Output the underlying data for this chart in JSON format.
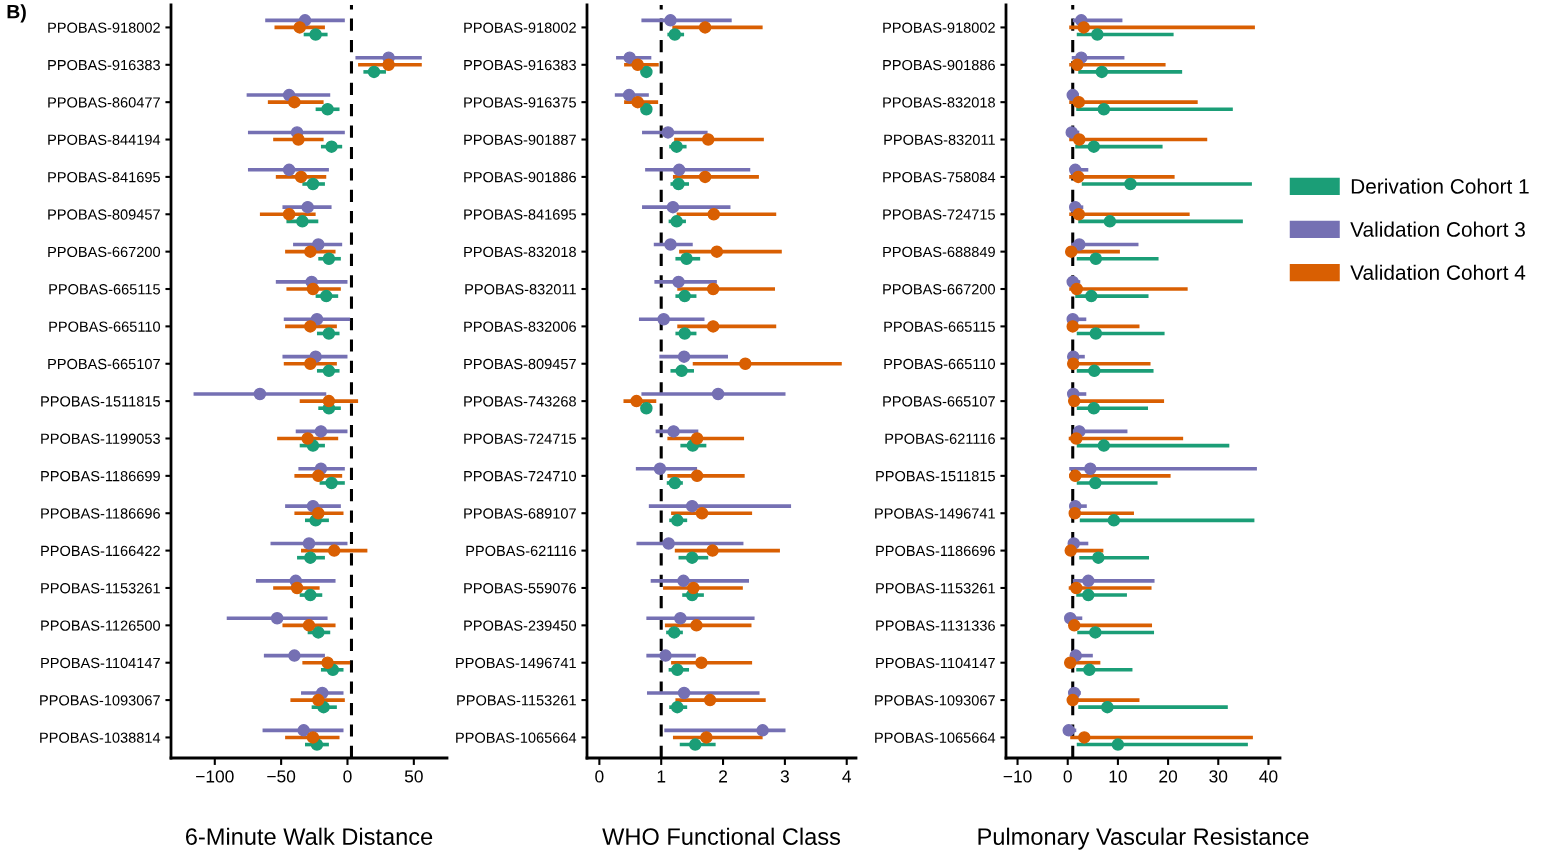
{
  "chart_data": [
    {
      "type": "scatter",
      "orientation": "horizontal",
      "marker": "circle",
      "xlabel": "6-Minute Walk Distance",
      "annotations": [
        "B)"
      ],
      "categories": [
        "PPOBAS-918002",
        "PPOBAS-916383",
        "PPOBAS-860477",
        "PPOBAS-844194",
        "PPOBAS-841695",
        "PPOBAS-809457",
        "PPOBAS-667200",
        "PPOBAS-665115",
        "PPOBAS-665110",
        "PPOBAS-665107",
        "PPOBAS-1511815",
        "PPOBAS-1199053",
        "PPOBAS-1186699",
        "PPOBAS-1186696",
        "PPOBAS-1166422",
        "PPOBAS-1153261",
        "PPOBAS-1126500",
        "PPOBAS-1104147",
        "PPOBAS-1093067",
        "PPOBAS-1038814"
      ],
      "xlim": [
        -133,
        75
      ],
      "xticks": [
        {
          "value": -100,
          "label": "−100"
        },
        {
          "value": -50,
          "label": "−50"
        },
        0,
        50
      ],
      "ref_lines": [
        {
          "axis": "x",
          "value": 3,
          "color": "#000000",
          "line_style": "dashed"
        }
      ],
      "series": [
        {
          "color": "#1b9e77",
          "values": [
            -24,
            20,
            -15,
            -12,
            -26,
            -34,
            -14,
            -16,
            -14,
            -14,
            -14,
            -26,
            -12,
            -24,
            -28,
            -28,
            -22,
            -11,
            -18,
            -23
          ],
          "errors": [
            [
              -33,
              -15
            ],
            [
              12,
              29
            ],
            [
              -24,
              -6
            ],
            [
              -20,
              -4
            ],
            [
              -34,
              -17
            ],
            [
              -46,
              -22
            ],
            [
              -22,
              -5
            ],
            [
              -24,
              -7
            ],
            [
              -23,
              -6
            ],
            [
              -23,
              -6
            ],
            [
              -22,
              -5
            ],
            [
              -36,
              -17
            ],
            [
              -21,
              -2
            ],
            [
              -32,
              -14
            ],
            [
              -38,
              -17
            ],
            [
              -36,
              -19
            ],
            [
              -30,
              -13
            ],
            [
              -20,
              -3
            ],
            [
              -27,
              -8
            ],
            [
              -32,
              -14
            ]
          ]
        },
        {
          "color": "#7570b3",
          "values": [
            -32,
            31,
            -44,
            -38,
            -44,
            -30,
            -22,
            -27,
            -23,
            -24,
            -66,
            -20,
            -20,
            -26,
            -29,
            -39,
            -53,
            -40,
            -19,
            -33
          ],
          "errors": [
            [
              -62,
              -2
            ],
            [
              6,
              56
            ],
            [
              -76,
              -13
            ],
            [
              -75,
              -2
            ],
            [
              -75,
              -14
            ],
            [
              -49,
              -12
            ],
            [
              -41,
              -4
            ],
            [
              -54,
              0
            ],
            [
              -48,
              2
            ],
            [
              -49,
              0
            ],
            [
              -116,
              -16
            ],
            [
              -39,
              0
            ],
            [
              -37,
              -2
            ],
            [
              -47,
              -5
            ],
            [
              -58,
              0
            ],
            [
              -69,
              -9
            ],
            [
              -91,
              -15
            ],
            [
              -63,
              -17
            ],
            [
              -35,
              -3
            ],
            [
              -64,
              -3
            ]
          ]
        },
        {
          "color": "#d95f02",
          "values": [
            -36,
            31,
            -40,
            -37,
            -35,
            -44,
            -28,
            -26,
            -28,
            -28,
            -14,
            -30,
            -22,
            -22,
            -10,
            -38,
            -29,
            -15,
            -22,
            -26
          ],
          "errors": [
            [
              -55,
              -17
            ],
            [
              8,
              56
            ],
            [
              -60,
              -18
            ],
            [
              -56,
              -18
            ],
            [
              -54,
              -16
            ],
            [
              -66,
              -24
            ],
            [
              -47,
              -9
            ],
            [
              -46,
              -5
            ],
            [
              -47,
              -8
            ],
            [
              -48,
              -8
            ],
            [
              -36,
              8
            ],
            [
              -53,
              -7
            ],
            [
              -40,
              -4
            ],
            [
              -40,
              -3
            ],
            [
              -35,
              15
            ],
            [
              -56,
              -21
            ],
            [
              -49,
              -9
            ],
            [
              -34,
              2
            ],
            [
              -43,
              -2
            ],
            [
              -47,
              -6
            ]
          ]
        }
      ]
    },
    {
      "type": "scatter",
      "orientation": "horizontal",
      "marker": "circle",
      "xlabel": "WHO Functional Class",
      "categories": [
        "PPOBAS-918002",
        "PPOBAS-916383",
        "PPOBAS-916375",
        "PPOBAS-901887",
        "PPOBAS-901886",
        "PPOBAS-841695",
        "PPOBAS-832018",
        "PPOBAS-832011",
        "PPOBAS-832006",
        "PPOBAS-809457",
        "PPOBAS-743268",
        "PPOBAS-724715",
        "PPOBAS-724710",
        "PPOBAS-689107",
        "PPOBAS-621116",
        "PPOBAS-559076",
        "PPOBAS-239450",
        "PPOBAS-1496741",
        "PPOBAS-1153261",
        "PPOBAS-1065664"
      ],
      "xlim": [
        -0.2,
        4.15
      ],
      "xticks": [
        0,
        1,
        2,
        3,
        4
      ],
      "ref_lines": [
        {
          "axis": "x",
          "value": 1,
          "color": "#000000",
          "line_style": "dashed"
        }
      ],
      "series": [
        {
          "color": "#1b9e77",
          "values": [
            1.22,
            0.76,
            0.76,
            1.25,
            1.28,
            1.25,
            1.41,
            1.38,
            1.38,
            1.33,
            0.76,
            1.51,
            1.22,
            1.26,
            1.5,
            1.5,
            1.21,
            1.26,
            1.26,
            1.55
          ],
          "errors": [
            [
              1.1,
              1.37
            ],
            [
              0.68,
              0.83
            ],
            [
              0.69,
              0.84
            ],
            [
              1.13,
              1.41
            ],
            [
              1.15,
              1.45
            ],
            [
              1.12,
              1.4
            ],
            [
              1.23,
              1.63
            ],
            [
              1.23,
              1.57
            ],
            [
              1.23,
              1.57
            ],
            [
              1.15,
              1.53
            ],
            [
              0.69,
              0.84
            ],
            [
              1.31,
              1.73
            ],
            [
              1.09,
              1.35
            ],
            [
              1.13,
              1.42
            ],
            [
              1.28,
              1.76
            ],
            [
              1.34,
              1.69
            ],
            [
              1.08,
              1.35
            ],
            [
              1.12,
              1.45
            ],
            [
              1.13,
              1.42
            ],
            [
              1.3,
              1.88
            ]
          ]
        },
        {
          "color": "#7570b3",
          "values": [
            1.15,
            0.49,
            0.48,
            1.11,
            1.29,
            1.19,
            1.15,
            1.28,
            1.04,
            1.37,
            1.92,
            1.2,
            0.98,
            1.5,
            1.12,
            1.36,
            1.31,
            1.07,
            1.37,
            2.64
          ],
          "errors": [
            [
              0.68,
              2.14
            ],
            [
              0.27,
              0.84
            ],
            [
              0.25,
              0.8
            ],
            [
              0.69,
              1.75
            ],
            [
              0.74,
              2.44
            ],
            [
              0.69,
              2.12
            ],
            [
              0.88,
              1.51
            ],
            [
              0.89,
              1.9
            ],
            [
              0.64,
              1.7
            ],
            [
              0.97,
              2.08
            ],
            [
              0.68,
              3.01
            ],
            [
              0.91,
              1.6
            ],
            [
              0.59,
              1.58
            ],
            [
              0.8,
              3.1
            ],
            [
              0.6,
              2.33
            ],
            [
              0.83,
              2.42
            ],
            [
              0.76,
              2.51
            ],
            [
              0.76,
              1.56
            ],
            [
              0.77,
              2.59
            ],
            [
              1.05,
              3.01
            ]
          ]
        },
        {
          "color": "#d95f02",
          "values": [
            1.71,
            0.62,
            0.62,
            1.76,
            1.71,
            1.85,
            1.9,
            1.84,
            1.84,
            2.36,
            0.6,
            1.58,
            1.58,
            1.66,
            1.83,
            1.52,
            1.57,
            1.65,
            1.79,
            1.73
          ],
          "errors": [
            [
              1.18,
              2.64
            ],
            [
              0.4,
              0.96
            ],
            [
              0.4,
              0.95
            ],
            [
              1.21,
              2.66
            ],
            [
              1.19,
              2.58
            ],
            [
              1.25,
              2.86
            ],
            [
              1.29,
              2.95
            ],
            [
              1.26,
              2.84
            ],
            [
              1.26,
              2.86
            ],
            [
              1.51,
              3.92
            ],
            [
              0.39,
              0.92
            ],
            [
              1.1,
              2.34
            ],
            [
              1.1,
              2.35
            ],
            [
              1.16,
              2.47
            ],
            [
              1.22,
              2.92
            ],
            [
              1.03,
              2.32
            ],
            [
              1.06,
              2.46
            ],
            [
              1.16,
              2.47
            ],
            [
              1.23,
              2.69
            ],
            [
              1.19,
              2.64
            ]
          ]
        }
      ]
    },
    {
      "type": "scatter",
      "orientation": "horizontal",
      "marker": "circle",
      "xlabel": "Pulmonary Vascular Resistance",
      "legend": "right",
      "categories": [
        "PPOBAS-918002",
        "PPOBAS-901886",
        "PPOBAS-832018",
        "PPOBAS-832011",
        "PPOBAS-758084",
        "PPOBAS-724715",
        "PPOBAS-688849",
        "PPOBAS-667200",
        "PPOBAS-665115",
        "PPOBAS-665110",
        "PPOBAS-665107",
        "PPOBAS-621116",
        "PPOBAS-1511815",
        "PPOBAS-1496741",
        "PPOBAS-1186696",
        "PPOBAS-1153261",
        "PPOBAS-1131336",
        "PPOBAS-1104147",
        "PPOBAS-1093067",
        "PPOBAS-1065664"
      ],
      "xlim": [
        -12.3,
        42.3
      ],
      "xticks": [
        {
          "value": -10,
          "label": "−10"
        },
        0,
        10,
        20,
        30,
        40
      ],
      "ref_lines": [
        {
          "axis": "x",
          "value": 1,
          "color": "#000000",
          "line_style": "dashed"
        }
      ],
      "series": [
        {
          "name": "Derivation Cohort 1",
          "color": "#1b9e77",
          "values": [
            5.9,
            6.8,
            7.2,
            5.2,
            12.5,
            8.4,
            5.6,
            4.7,
            5.6,
            5.3,
            5.2,
            7.2,
            5.5,
            9.2,
            6.1,
            4.1,
            5.5,
            4.3,
            7.9,
            10.0
          ],
          "errors": [
            [
              1.8,
              21.1
            ],
            [
              2.1,
              22.8
            ],
            [
              1.7,
              32.9
            ],
            [
              1.5,
              18.9
            ],
            [
              2.8,
              36.7
            ],
            [
              2.1,
              34.9
            ],
            [
              1.8,
              18.1
            ],
            [
              1.5,
              16.1
            ],
            [
              1.8,
              19.3
            ],
            [
              1.8,
              17.1
            ],
            [
              1.8,
              16.0
            ],
            [
              1.8,
              32.2
            ],
            [
              1.8,
              17.9
            ],
            [
              2.4,
              37.2
            ],
            [
              2.3,
              16.2
            ],
            [
              1.7,
              11.8
            ],
            [
              1.9,
              17.2
            ],
            [
              1.7,
              12.9
            ],
            [
              2.1,
              31.9
            ],
            [
              1.8,
              35.9
            ]
          ]
        },
        {
          "name": "Validation Cohort 3",
          "color": "#7570b3",
          "values": [
            2.7,
            2.7,
            1.0,
            0.8,
            1.5,
            1.5,
            2.3,
            1.0,
            1.0,
            1.1,
            1.1,
            2.3,
            4.5,
            1.5,
            1.2,
            4.1,
            0.5,
            1.6,
            1.3,
            0.2
          ],
          "errors": [
            [
              1.0,
              10.9
            ],
            [
              0.8,
              11.3
            ],
            [
              0.5,
              2.2
            ],
            [
              0.2,
              2.3
            ],
            [
              1.0,
              4.1
            ],
            [
              0.9,
              3.1
            ],
            [
              0.7,
              14.1
            ],
            [
              0.3,
              2.5
            ],
            [
              0.5,
              3.7
            ],
            [
              0.5,
              3.4
            ],
            [
              0.5,
              3.7
            ],
            [
              1.0,
              11.9
            ],
            [
              0.3,
              37.7
            ],
            [
              1.0,
              3.8
            ],
            [
              0.7,
              4.1
            ],
            [
              1.0,
              17.3
            ],
            [
              0.1,
              2.9
            ],
            [
              0.9,
              5.0
            ],
            [
              0.7,
              2.6
            ],
            [
              -0.3,
              1.7
            ]
          ]
        },
        {
          "name": "Validation Cohort 4",
          "color": "#d95f02",
          "values": [
            3.2,
            1.9,
            2.2,
            2.3,
            2.1,
            2.2,
            0.7,
            1.8,
            1.0,
            1.1,
            1.3,
            1.7,
            1.5,
            1.4,
            0.6,
            1.7,
            1.3,
            0.5,
            1.0,
            3.3
          ],
          "errors": [
            [
              0.3,
              37.3
            ],
            [
              0.3,
              19.5
            ],
            [
              0.3,
              25.9
            ],
            [
              0.3,
              27.8
            ],
            [
              0.3,
              21.3
            ],
            [
              0.3,
              24.3
            ],
            [
              0.7,
              10.4
            ],
            [
              0.3,
              23.9
            ],
            [
              0.3,
              14.3
            ],
            [
              0.5,
              16.5
            ],
            [
              0.3,
              19.2
            ],
            [
              0.2,
              23.0
            ],
            [
              0.3,
              20.5
            ],
            [
              0.3,
              13.2
            ],
            [
              0.2,
              7.1
            ],
            [
              0.2,
              16.7
            ],
            [
              0.5,
              16.8
            ],
            [
              0.5,
              6.5
            ],
            [
              0.3,
              14.3
            ],
            [
              0.5,
              36.9
            ]
          ]
        }
      ]
    }
  ]
}
